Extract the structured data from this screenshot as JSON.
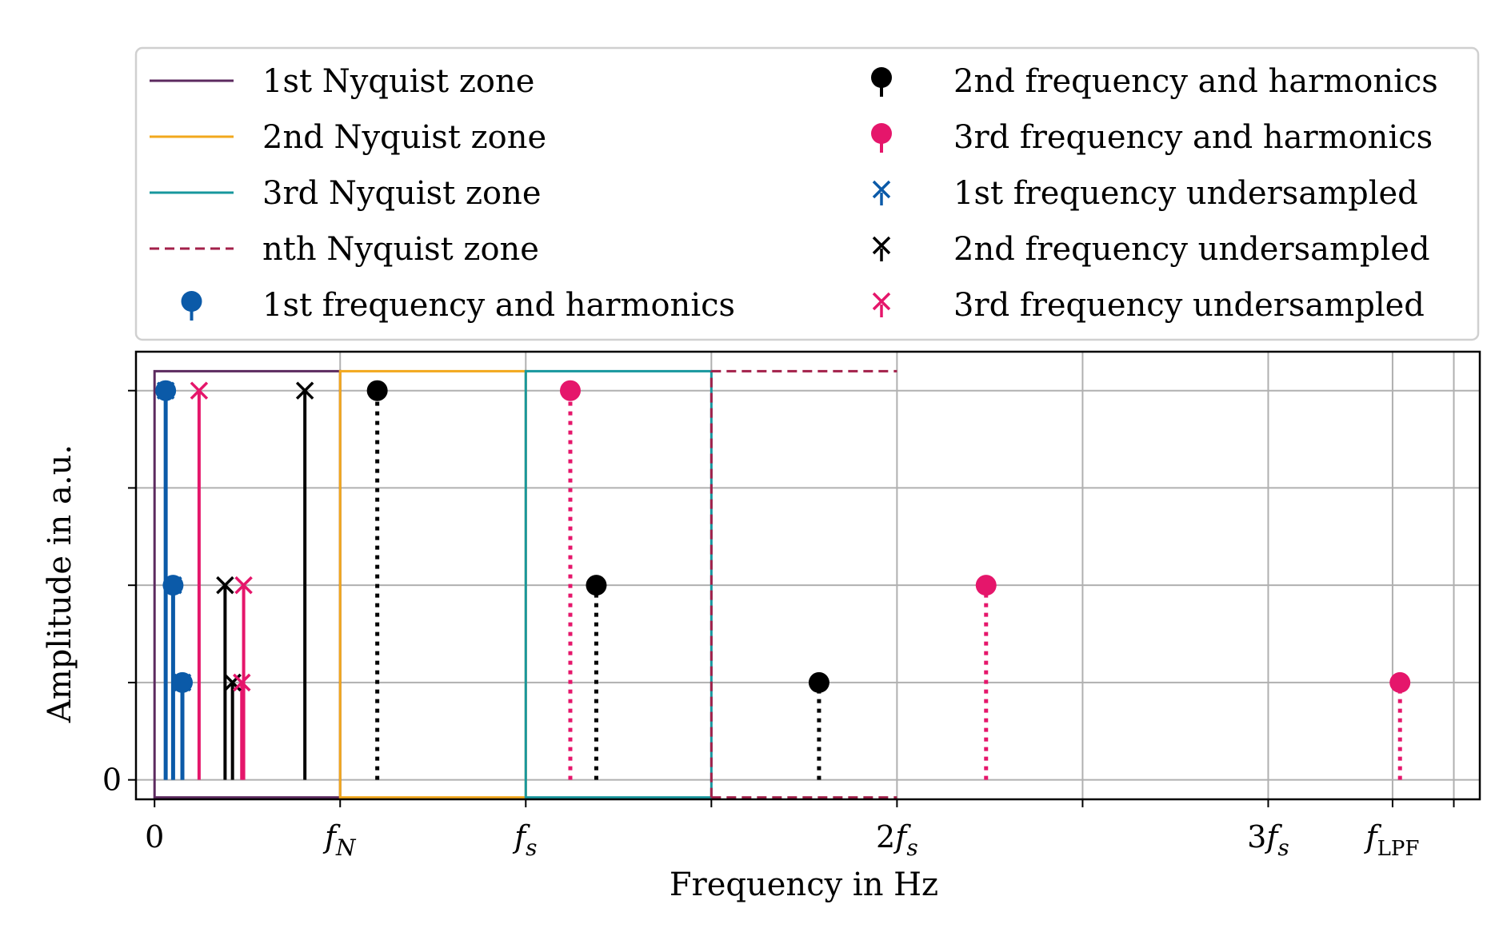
{
  "chart_data": {
    "type": "stem",
    "xlabel": "Frequency in Hz",
    "ylabel": "Amplitude in a.u.",
    "fs_units": 1.0,
    "xlim": [
      -0.05,
      3.57
    ],
    "ylim": [
      -0.2,
      4.4
    ],
    "x_ticks": [
      {
        "value": 0,
        "label": "0"
      },
      {
        "value": 0.5,
        "label": "f_N"
      },
      {
        "value": 1.0,
        "label": "f_s"
      },
      {
        "value": 1.5,
        "label": ""
      },
      {
        "value": 2.0,
        "label": "2f_s"
      },
      {
        "value": 2.5,
        "label": ""
      },
      {
        "value": 3.0,
        "label": "3f_s"
      },
      {
        "value": 3.335,
        "label": "f_LPF"
      },
      {
        "value": 3.5,
        "label": ""
      }
    ],
    "y_ticks": [
      {
        "value": 0,
        "label": "0"
      },
      {
        "value": 1,
        "label": ""
      },
      {
        "value": 2,
        "label": ""
      },
      {
        "value": 3,
        "label": ""
      },
      {
        "value": 4,
        "label": ""
      }
    ],
    "grid": true,
    "legend_position": "above plot, two columns",
    "zones": [
      {
        "name": "1st Nyquist zone",
        "x0": 0,
        "x1": 0.5,
        "color": "#5c2a5f",
        "dashed": false
      },
      {
        "name": "2nd Nyquist zone",
        "x0": 0.5,
        "x1": 1.0,
        "color": "#f2a81d",
        "dashed": false
      },
      {
        "name": "3rd Nyquist zone",
        "x0": 1.0,
        "x1": 1.5,
        "color": "#17979e",
        "dashed": false
      },
      {
        "name": "nth Nyquist zone",
        "x0": 1.5,
        "x1": 2.0,
        "color": "#a3204a",
        "dashed": true
      }
    ],
    "zone_y": [
      -0.18,
      4.2
    ],
    "series": [
      {
        "name": "1st frequency and harmonics",
        "color": "#0b5aa8",
        "marker": "o",
        "line": "solid",
        "x": [
          0.03,
          0.05,
          0.075
        ],
        "y": [
          4,
          2,
          1
        ]
      },
      {
        "name": "2nd frequency and harmonics",
        "color": "#000000",
        "marker": "o",
        "line": "dotted",
        "x": [
          0.6,
          1.19,
          1.79
        ],
        "y": [
          4,
          2,
          1
        ]
      },
      {
        "name": "3rd frequency and harmonics",
        "color": "#e5166b",
        "marker": "o",
        "line": "dotted",
        "x": [
          1.12,
          2.24,
          3.355
        ],
        "y": [
          4,
          2,
          1
        ]
      },
      {
        "name": "1st frequency undersampled",
        "color": "#0b5aa8",
        "marker": "x",
        "line": "solid",
        "x": [
          0.03,
          0.05,
          0.075
        ],
        "y": [
          4,
          2,
          1
        ]
      },
      {
        "name": "2nd frequency undersampled",
        "color": "#000000",
        "marker": "x",
        "line": "solid",
        "x": [
          0.405,
          0.19,
          0.21
        ],
        "y": [
          4,
          2,
          1
        ]
      },
      {
        "name": "3rd frequency undersampled",
        "color": "#e5166b",
        "marker": "x",
        "line": "solid",
        "x": [
          0.12,
          0.24,
          0.235
        ],
        "y": [
          4,
          2,
          1
        ]
      }
    ],
    "legend": [
      {
        "label": "1st Nyquist zone",
        "kind": "line",
        "color": "#5c2a5f",
        "dashed": false
      },
      {
        "label": "2nd Nyquist zone",
        "kind": "line",
        "color": "#f2a81d",
        "dashed": false
      },
      {
        "label": "3rd Nyquist zone",
        "kind": "line",
        "color": "#17979e",
        "dashed": false
      },
      {
        "label": "nth Nyquist zone",
        "kind": "line",
        "color": "#a3204a",
        "dashed": true
      },
      {
        "label": "1st frequency and harmonics",
        "kind": "stem",
        "color": "#0b5aa8"
      },
      {
        "label": "2nd frequency and harmonics",
        "kind": "stem",
        "color": "#000000"
      },
      {
        "label": "3rd frequency and harmonics",
        "kind": "stem",
        "color": "#e5166b"
      },
      {
        "label": "1st frequency undersampled",
        "kind": "x",
        "color": "#0b5aa8"
      },
      {
        "label": "2nd frequency undersampled",
        "kind": "x",
        "color": "#000000"
      },
      {
        "label": "3rd frequency undersampled",
        "kind": "x",
        "color": "#e5166b"
      }
    ]
  }
}
